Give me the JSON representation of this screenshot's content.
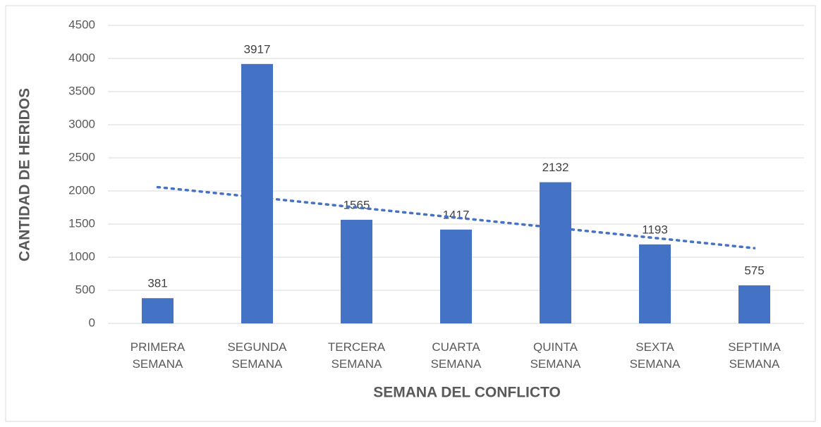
{
  "chart_data": {
    "type": "bar",
    "categories": [
      "PRIMERA SEMANA",
      "SEGUNDA SEMANA",
      "TERCERA SEMANA",
      "CUARTA SEMANA",
      "QUINTA SEMANA",
      "SEXTA SEMANA",
      "SEPTIMA SEMANA"
    ],
    "values": [
      381,
      3917,
      1565,
      1417,
      2132,
      1193,
      575
    ],
    "color": "#4472c4",
    "xlabel": "SEMANA DEL CONFLICTO",
    "ylabel": "CANTIDAD DE HERIDOS",
    "ylim": [
      0,
      4500
    ],
    "yticks": [
      0,
      500,
      1000,
      1500,
      2000,
      2500,
      3000,
      3500,
      4000,
      4500
    ],
    "grid": true,
    "trendline": "linear"
  }
}
